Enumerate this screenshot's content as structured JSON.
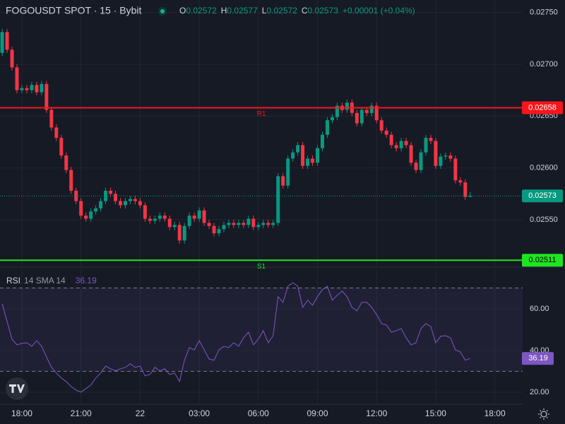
{
  "header": {
    "symbol": "FOGOUSDT SPOT · 15 · Bybit",
    "o_label": "O",
    "h_label": "H",
    "l_label": "L",
    "c_label": "C",
    "change": "+0.00001 (+0.04%)"
  },
  "chart_data": [
    {
      "type": "candlestick",
      "x": [
        17,
        17.25,
        17.5,
        17.75,
        18,
        18.25,
        18.5,
        18.75,
        19,
        19.25,
        19.5,
        19.75,
        20,
        20.25,
        20.5,
        20.75,
        21,
        21.25,
        21.5,
        21.75,
        22,
        22.25,
        22.5,
        22.75,
        23,
        23.25,
        23.5,
        23.75,
        24,
        24.25,
        24.5,
        24.75,
        25,
        25.25,
        25.5,
        25.75,
        26,
        26.25,
        26.5,
        26.75,
        27,
        27.25,
        27.5,
        27.75,
        28,
        28.25,
        28.5,
        28.75,
        29,
        29.25,
        29.5,
        29.75,
        30,
        30.25,
        30.5,
        30.75,
        31,
        31.25,
        31.5,
        31.75,
        32,
        32.25,
        32.5,
        32.75,
        33,
        33.25,
        33.5,
        33.75,
        34,
        34.25,
        34.5,
        34.75,
        35,
        35.25,
        35.5,
        35.75,
        36,
        36.25,
        36.5,
        36.75,
        37,
        37.25,
        37.5,
        37.75,
        38,
        38.25,
        38.5,
        38.75,
        39,
        39.25,
        39.5,
        39.75,
        40,
        40.25,
        40.5,
        40.75
      ],
      "open": [
        0.02711,
        0.02731,
        0.02714,
        0.02697,
        0.02675,
        0.02677,
        0.02675,
        0.0268,
        0.02673,
        0.02681,
        0.02656,
        0.02639,
        0.02629,
        0.02612,
        0.02598,
        0.02578,
        0.02568,
        0.02554,
        0.02551,
        0.02558,
        0.02561,
        0.02568,
        0.02578,
        0.02575,
        0.02568,
        0.02564,
        0.02568,
        0.0257,
        0.02568,
        0.02564,
        0.02551,
        0.02549,
        0.02551,
        0.02554,
        0.02551,
        0.02543,
        0.02545,
        0.0253,
        0.02544,
        0.02554,
        0.02551,
        0.02559,
        0.02547,
        0.02544,
        0.02537,
        0.02541,
        0.02545,
        0.02547,
        0.02545,
        0.02547,
        0.02545,
        0.02551,
        0.02543,
        0.02545,
        0.02547,
        0.02545,
        0.02547,
        0.02592,
        0.02583,
        0.02609,
        0.02615,
        0.02622,
        0.02602,
        0.02609,
        0.02605,
        0.02619,
        0.02632,
        0.02646,
        0.02649,
        0.0266,
        0.02656,
        0.02663,
        0.02653,
        0.02643,
        0.02656,
        0.02653,
        0.0266,
        0.02646,
        0.02636,
        0.02632,
        0.02622,
        0.02619,
        0.02626,
        0.02622,
        0.02605,
        0.02598,
        0.02615,
        0.02629,
        0.02626,
        0.02602,
        0.02611,
        0.02612,
        0.02609,
        0.02588,
        0.02586,
        0.02572
      ],
      "high": [
        0.02734,
        0.02734,
        0.02717,
        0.027,
        0.0268,
        0.0268,
        0.02683,
        0.02683,
        0.02684,
        0.02684,
        0.02659,
        0.02642,
        0.02632,
        0.02615,
        0.02601,
        0.02581,
        0.02571,
        0.02557,
        0.02561,
        0.02564,
        0.02571,
        0.02581,
        0.02581,
        0.02578,
        0.02571,
        0.02571,
        0.02573,
        0.02573,
        0.02571,
        0.02567,
        0.02554,
        0.02554,
        0.02557,
        0.02557,
        0.02554,
        0.02548,
        0.02548,
        0.02547,
        0.02557,
        0.02557,
        0.02562,
        0.02562,
        0.0255,
        0.02547,
        0.02544,
        0.02548,
        0.0255,
        0.0255,
        0.0255,
        0.0255,
        0.02554,
        0.02554,
        0.02548,
        0.0255,
        0.0255,
        0.0255,
        0.02595,
        0.02595,
        0.02612,
        0.02618,
        0.02625,
        0.02625,
        0.02612,
        0.02612,
        0.02622,
        0.02635,
        0.02649,
        0.02652,
        0.02663,
        0.02663,
        0.02666,
        0.02666,
        0.02656,
        0.02659,
        0.02659,
        0.02663,
        0.02663,
        0.02649,
        0.02639,
        0.02635,
        0.02625,
        0.02629,
        0.02629,
        0.02625,
        0.02608,
        0.02618,
        0.02632,
        0.02632,
        0.02629,
        0.02614,
        0.02615,
        0.02615,
        0.02612,
        0.02591,
        0.02589,
        0.02577
      ],
      "low": [
        0.02708,
        0.02711,
        0.02694,
        0.02672,
        0.02672,
        0.02672,
        0.02672,
        0.0267,
        0.0267,
        0.02653,
        0.02636,
        0.02626,
        0.02609,
        0.02595,
        0.02575,
        0.02565,
        0.02551,
        0.02548,
        0.02548,
        0.02555,
        0.02558,
        0.02565,
        0.02572,
        0.02565,
        0.02561,
        0.02561,
        0.02565,
        0.02565,
        0.02561,
        0.02548,
        0.02546,
        0.02546,
        0.02548,
        0.02548,
        0.0254,
        0.0254,
        0.02527,
        0.02527,
        0.02541,
        0.02548,
        0.02548,
        0.02544,
        0.02541,
        0.02534,
        0.02534,
        0.02538,
        0.02542,
        0.02542,
        0.02542,
        0.02542,
        0.02542,
        0.0254,
        0.0254,
        0.02542,
        0.02542,
        0.02542,
        0.02544,
        0.0258,
        0.0258,
        0.02606,
        0.02612,
        0.02599,
        0.02599,
        0.02602,
        0.02602,
        0.02616,
        0.02629,
        0.02643,
        0.02646,
        0.02653,
        0.02653,
        0.0265,
        0.0264,
        0.0264,
        0.0265,
        0.0265,
        0.02643,
        0.02633,
        0.02629,
        0.02619,
        0.02616,
        0.02616,
        0.02619,
        0.02602,
        0.02595,
        0.02595,
        0.02612,
        0.02623,
        0.02599,
        0.02599,
        0.02608,
        0.02606,
        0.02585,
        0.02583,
        0.02569,
        0.02572
      ],
      "close": [
        0.02731,
        0.02714,
        0.02697,
        0.02675,
        0.02677,
        0.02675,
        0.0268,
        0.02673,
        0.02681,
        0.02656,
        0.02639,
        0.02629,
        0.02612,
        0.02598,
        0.02578,
        0.02568,
        0.02554,
        0.02551,
        0.02558,
        0.02561,
        0.02568,
        0.02578,
        0.02575,
        0.02568,
        0.02564,
        0.02568,
        0.0257,
        0.02568,
        0.02564,
        0.02551,
        0.02549,
        0.02551,
        0.02554,
        0.02551,
        0.02543,
        0.02545,
        0.0253,
        0.02544,
        0.02554,
        0.02551,
        0.02559,
        0.02547,
        0.02544,
        0.02537,
        0.02541,
        0.02545,
        0.02547,
        0.02545,
        0.02547,
        0.02545,
        0.02551,
        0.02543,
        0.02545,
        0.02547,
        0.02545,
        0.02547,
        0.02592,
        0.02583,
        0.02609,
        0.02615,
        0.02622,
        0.02602,
        0.02609,
        0.02605,
        0.02619,
        0.02632,
        0.02646,
        0.02649,
        0.0266,
        0.02656,
        0.02663,
        0.02653,
        0.02643,
        0.02656,
        0.02653,
        0.0266,
        0.02646,
        0.02636,
        0.02632,
        0.02622,
        0.02619,
        0.02626,
        0.02622,
        0.02605,
        0.02598,
        0.02615,
        0.02629,
        0.02626,
        0.02602,
        0.02611,
        0.02612,
        0.02609,
        0.02588,
        0.02586,
        0.02572,
        0.02573
      ],
      "up_color": "#089981",
      "down_color": "#f23645",
      "xlim": [
        16.89,
        43.41
      ],
      "xticks": [
        {
          "value": 18,
          "label": "18:00"
        },
        {
          "value": 21,
          "label": "21:00"
        },
        {
          "value": 24,
          "label": "22"
        },
        {
          "value": 27,
          "label": "03:00"
        },
        {
          "value": 30,
          "label": "06:00"
        },
        {
          "value": 33,
          "label": "09:00"
        },
        {
          "value": 36,
          "label": "12:00"
        },
        {
          "value": 39,
          "label": "15:00"
        },
        {
          "value": 42,
          "label": "18:00"
        }
      ],
      "ylim": [
        0.02505,
        0.02762
      ],
      "yticks": [
        {
          "value": 0.0275,
          "label": "0.02750"
        },
        {
          "value": 0.027,
          "label": "0.02700"
        },
        {
          "value": 0.0265,
          "label": "0.02650"
        },
        {
          "value": 0.026,
          "label": "0.02600"
        },
        {
          "value": 0.0255,
          "label": "0.02550"
        }
      ],
      "grid": true,
      "levels": [
        {
          "name": "R1",
          "value": 0.02658,
          "color": "#f7161b"
        },
        {
          "name": "S1",
          "value": 0.02511,
          "color": "#1ee61e"
        }
      ]
    },
    {
      "type": "line",
      "series": [
        {
          "name": "RSI",
          "params": "14 SMA 14",
          "color": "#7e57c2",
          "values": [
            62.4,
            53.9,
            45.4,
            42.7,
            43.4,
            43.7,
            42,
            44.7,
            42,
            36.9,
            31.9,
            29.2,
            26.8,
            25.1,
            22.7,
            21,
            20,
            21.7,
            23.4,
            26.8,
            29.2,
            32.5,
            31.2,
            30.2,
            31.2,
            31.9,
            33.6,
            31.9,
            32.5,
            27.8,
            28.5,
            31.9,
            30.2,
            31.2,
            28.5,
            29.2,
            25.1,
            35.3,
            41.4,
            40.3,
            44.7,
            40.3,
            35.9,
            35.3,
            40.3,
            42,
            41.4,
            43.7,
            42,
            46.1,
            48.8,
            42.7,
            45.4,
            49.5,
            43.7,
            47.1,
            65.8,
            63.1,
            70.8,
            72.5,
            70.8,
            60.7,
            64.1,
            61.7,
            65.8,
            69.2,
            70.8,
            64.1,
            66.4,
            68.5,
            65.8,
            60.7,
            59,
            63.1,
            63.1,
            60.7,
            57.3,
            52.9,
            52.2,
            48.8,
            49.5,
            50.5,
            46.1,
            42.7,
            43.7,
            50.5,
            52.9,
            51.5,
            43.7,
            46.8,
            47.1,
            46.1,
            40.3,
            39.3,
            35.3,
            36.19
          ]
        }
      ],
      "ylim": [
        14.9,
        79.3
      ],
      "yticks": [
        {
          "value": 60,
          "label": "60.00"
        },
        {
          "value": 40,
          "label": "40.00"
        },
        {
          "value": 20,
          "label": "20.00"
        }
      ],
      "bands": [
        70,
        30
      ],
      "band_color": "#7e57c2",
      "grid": true
    }
  ]
}
